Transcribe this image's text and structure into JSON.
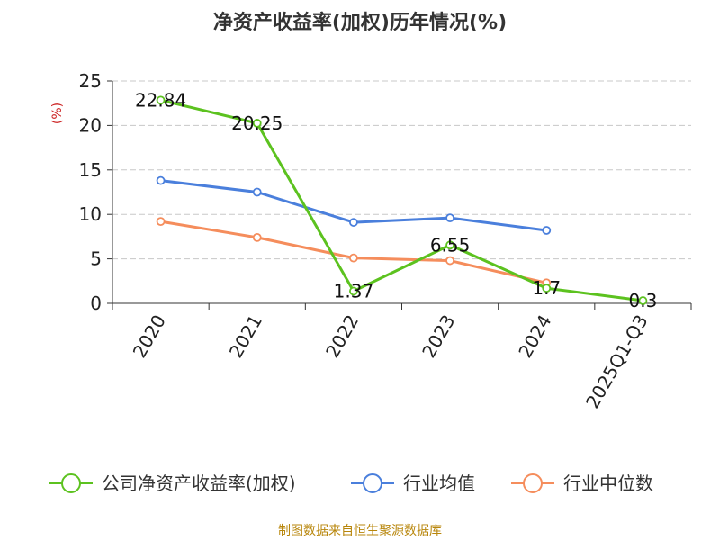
{
  "chart_data": {
    "type": "line",
    "title": "净资产收益率(加权)历年情况(%)",
    "ylabel": "(%)",
    "xlabel": "",
    "categories": [
      "2020",
      "2021",
      "2022",
      "2023",
      "2024",
      "2025Q1-Q3"
    ],
    "ylim": [
      0,
      25
    ],
    "yticks": [
      0,
      5,
      10,
      15,
      20,
      25
    ],
    "grid": "horizontal dashed",
    "legend_position": "bottom",
    "series": [
      {
        "name": "公司净资产收益率(加权)",
        "color": "#5cc21f",
        "values": [
          22.84,
          20.25,
          1.37,
          6.55,
          1.7,
          0.3
        ],
        "labels": [
          "22.84",
          "20.25",
          "1.37",
          "6.55",
          "1.7",
          "0.3"
        ]
      },
      {
        "name": "行业均值",
        "color": "#4a7fdc",
        "values": [
          13.8,
          12.5,
          9.1,
          9.6,
          8.2,
          null
        ],
        "labels": []
      },
      {
        "name": "行业中位数",
        "color": "#f58d5c",
        "values": [
          9.2,
          7.4,
          5.1,
          4.8,
          2.3,
          null
        ],
        "labels": []
      }
    ],
    "source": "制图数据来自恒生聚源数据库"
  }
}
